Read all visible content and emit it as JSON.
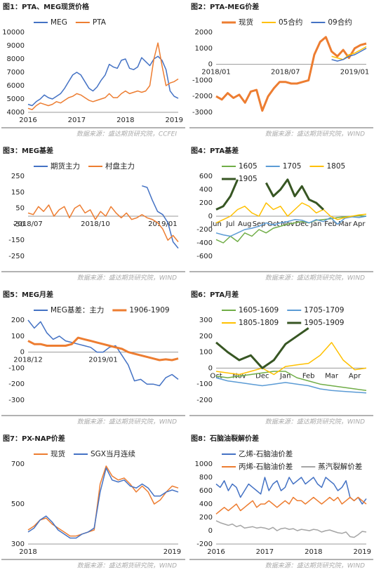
{
  "chart_data": [
    {
      "type": "line",
      "title": "图1：PTA、MEG现货价格",
      "source": "数据来源：盛达期货研究院，CCFEI",
      "categories": [
        "2016",
        null,
        null,
        null,
        null,
        null,
        null,
        null,
        null,
        null,
        null,
        null,
        "2017",
        null,
        null,
        null,
        null,
        null,
        null,
        null,
        null,
        null,
        null,
        null,
        "2018",
        null,
        null,
        null,
        null,
        null,
        null,
        null,
        null,
        null,
        null,
        null,
        "2019",
        null
      ],
      "series": [
        {
          "name": "MEG",
          "color": "#4472c4",
          "values": [
            4600,
            4500,
            4800,
            5000,
            5300,
            5100,
            5000,
            5200,
            5400,
            5800,
            6300,
            6800,
            7000,
            6800,
            6300,
            5800,
            5600,
            5900,
            6400,
            6800,
            7600,
            7400,
            7300,
            7900,
            8000,
            7300,
            7200,
            7400,
            8100,
            7800,
            7500,
            8000,
            8200,
            7900,
            7200,
            5600,
            5200,
            5050
          ]
        },
        {
          "name": "PTA",
          "color": "#ed7d31",
          "values": [
            4300,
            4200,
            4500,
            4700,
            4600,
            4500,
            4600,
            4800,
            4700,
            4900,
            5100,
            5200,
            5400,
            5300,
            5100,
            4900,
            4800,
            4900,
            5000,
            5100,
            5400,
            5100,
            5100,
            5400,
            5600,
            5400,
            5500,
            5600,
            5500,
            5600,
            6000,
            8000,
            9200,
            7500,
            6000,
            6200,
            6300,
            6500
          ]
        }
      ],
      "ylim": [
        4000,
        10000
      ],
      "yticks": [
        4000,
        5000,
        6000,
        7000,
        8000,
        9000,
        10000
      ],
      "x_labels_at_zero": false
    },
    {
      "type": "line",
      "title": "图2：PTA-MEG价差",
      "source": "数据来源：盛达期货研究院，WIND",
      "categories": [
        "2018/01",
        null,
        null,
        null,
        null,
        null,
        null,
        null,
        null,
        null,
        null,
        null,
        "2018/07",
        null,
        null,
        null,
        null,
        null,
        null,
        null,
        null,
        null,
        null,
        null,
        "2019/01",
        null,
        null
      ],
      "series": [
        {
          "name": "现货",
          "color": "#ed7d31",
          "width": 3,
          "values": [
            -2000,
            -2200,
            -1800,
            -2100,
            -1900,
            -2400,
            -1700,
            -1600,
            -2900,
            -2000,
            -1500,
            -1100,
            -1100,
            -1200,
            -1200,
            -1100,
            -1000,
            600,
            1400,
            1700,
            800,
            500,
            900,
            400,
            1000,
            1200,
            1300
          ]
        },
        {
          "name": "05合约",
          "color": "#ffc000",
          "values": [
            null,
            null,
            null,
            null,
            null,
            null,
            null,
            null,
            null,
            null,
            null,
            null,
            null,
            null,
            null,
            null,
            null,
            null,
            null,
            null,
            500,
            400,
            300,
            600,
            700,
            900,
            1100
          ]
        },
        {
          "name": "09合约",
          "color": "#4472c4",
          "values": [
            null,
            null,
            null,
            null,
            null,
            null,
            null,
            null,
            null,
            null,
            null,
            null,
            null,
            null,
            null,
            null,
            null,
            null,
            null,
            null,
            300,
            200,
            300,
            500,
            600,
            800,
            1000
          ]
        }
      ],
      "ylim": [
        -3000,
        2000
      ],
      "yticks": [
        -3000,
        -2000,
        -1000,
        0,
        1000,
        2000
      ],
      "x_labels_at_zero": true
    },
    {
      "type": "line",
      "title": "图3：MEG基差",
      "source": "数据来源：盛达期货研究院，WIND",
      "categories": [
        "2018/07",
        null,
        null,
        null,
        null,
        null,
        null,
        null,
        null,
        null,
        null,
        null,
        null,
        "2018/10",
        null,
        null,
        null,
        null,
        null,
        null,
        null,
        null,
        null,
        null,
        null,
        null,
        "2019/01",
        null,
        null,
        null
      ],
      "series": [
        {
          "name": "期货主力",
          "color": "#4472c4",
          "values": [
            null,
            null,
            null,
            null,
            null,
            null,
            null,
            null,
            null,
            null,
            null,
            null,
            null,
            null,
            null,
            null,
            null,
            null,
            null,
            null,
            null,
            null,
            190,
            180,
            100,
            30,
            10,
            -40,
            -160,
            -200
          ]
        },
        {
          "name": "村盘主力",
          "color": "#ed7d31",
          "values": [
            20,
            10,
            60,
            30,
            70,
            0,
            40,
            60,
            -10,
            50,
            70,
            20,
            40,
            -20,
            30,
            0,
            60,
            20,
            -10,
            20,
            -20,
            -10,
            10,
            -10,
            -20,
            -40,
            -80,
            -150,
            -120,
            -160
          ]
        }
      ],
      "ylim": [
        -250,
        250
      ],
      "yticks": [
        -250,
        -150,
        -50,
        50,
        150,
        250
      ],
      "x_labels_at_zero": true
    },
    {
      "type": "line",
      "title": "图4：PTA基差",
      "source": "数据来源：盛达期货研究院，WIND",
      "categories": [
        "Jun",
        null,
        "Jul",
        null,
        "Aug",
        null,
        "Sep",
        null,
        "Oct",
        null,
        "Nov",
        null,
        "Dec",
        null,
        "Jan",
        null,
        "Feb",
        null,
        "Mar",
        null,
        "Apr",
        null
      ],
      "series": [
        {
          "name": "1605",
          "color": "#70ad47",
          "values": [
            -350,
            -400,
            -300,
            -380,
            -250,
            -300,
            -200,
            -250,
            -180,
            -150,
            -120,
            -100,
            -80,
            -100,
            -60,
            -50,
            -40,
            -20,
            -10,
            0,
            10,
            0
          ]
        },
        {
          "name": "1705",
          "color": "#5b9bd5",
          "values": [
            -250,
            -280,
            -300,
            -250,
            -200,
            -180,
            -150,
            -100,
            -130,
            -100,
            -80,
            -50,
            -60,
            -100,
            -50,
            -80,
            -20,
            -120,
            -30,
            -10,
            -20,
            0
          ]
        },
        {
          "name": "1805",
          "color": "#ffc000",
          "values": [
            -100,
            -50,
            0,
            100,
            150,
            50,
            0,
            200,
            100,
            150,
            0,
            100,
            200,
            150,
            50,
            100,
            0,
            -50,
            -20,
            0,
            20,
            30
          ]
        },
        {
          "name": "1905",
          "color": "#375623",
          "width": 3,
          "values": [
            100,
            150,
            300,
            550,
            null,
            null,
            null,
            500,
            300,
            400,
            550,
            300,
            450,
            250,
            200,
            100,
            null,
            null,
            null,
            null,
            null,
            null
          ]
        }
      ],
      "ylim": [
        -600,
        600
      ],
      "yticks": [
        -600,
        -400,
        -200,
        0,
        200,
        400,
        600
      ],
      "x_labels_at_zero": true
    },
    {
      "type": "line",
      "title": "图5：MEG月差",
      "source": "数据来源：盛达期货研究院，WIND",
      "categories": [
        "2018/12",
        null,
        null,
        null,
        null,
        null,
        null,
        null,
        null,
        null,
        null,
        null,
        "2019/01",
        null,
        null,
        null,
        null,
        null,
        null,
        null,
        null,
        null,
        null,
        null,
        null
      ],
      "series": [
        {
          "name": "MEG基差：主力",
          "color": "#4472c4",
          "values": [
            200,
            150,
            190,
            120,
            80,
            100,
            70,
            60,
            50,
            40,
            30,
            0,
            0,
            30,
            40,
            -20,
            -80,
            -180,
            -170,
            -200,
            -200,
            -210,
            -160,
            -140,
            -170
          ]
        },
        {
          "name": "1906-1909",
          "color": "#ed7d31",
          "width": 3,
          "values": [
            70,
            50,
            50,
            40,
            40,
            40,
            40,
            50,
            90,
            80,
            70,
            60,
            50,
            40,
            30,
            20,
            0,
            -10,
            -20,
            -30,
            -40,
            -50,
            -45,
            -50,
            -40
          ]
        }
      ],
      "ylim": [
        -300,
        200
      ],
      "yticks": [
        -300,
        -200,
        -100,
        0,
        100,
        200
      ],
      "x_labels_at_zero": true
    },
    {
      "type": "line",
      "title": "图6：PTA月差",
      "source": "数据来源：盛达期货研究院，WIND",
      "categories": [
        "Oct",
        null,
        "Nov",
        null,
        "Dec",
        null,
        "Jan",
        null,
        "Feb",
        null,
        "Mar",
        null,
        "Apr",
        null
      ],
      "series": [
        {
          "name": "1605-1609",
          "color": "#70ad47",
          "values": [
            -50,
            -60,
            -50,
            -40,
            -30,
            -20,
            -20,
            -60,
            -80,
            -100,
            -110,
            -120,
            -130,
            -140
          ]
        },
        {
          "name": "1705-1709",
          "color": "#5b9bd5",
          "values": [
            -60,
            -80,
            -90,
            -100,
            -110,
            -100,
            -90,
            -100,
            -110,
            -130,
            -140,
            -145,
            -150,
            -155
          ]
        },
        {
          "name": "1805-1809",
          "color": "#ffc000",
          "values": [
            -20,
            -30,
            -40,
            -20,
            0,
            -40,
            10,
            20,
            30,
            80,
            160,
            50,
            -10,
            0
          ]
        },
        {
          "name": "1905-1909",
          "color": "#375623",
          "width": 3,
          "values": [
            160,
            100,
            50,
            80,
            0,
            50,
            150,
            200,
            250,
            null,
            null,
            null,
            null,
            null
          ]
        }
      ],
      "ylim": [
        -200,
        300
      ],
      "yticks": [
        -200,
        -100,
        0,
        100,
        200,
        300
      ],
      "x_labels_at_zero": true
    },
    {
      "type": "line",
      "title": "图7：PX-NAP价差",
      "source": "数据来源：盛达期货研究院，WIND",
      "categories": [
        "2018",
        null,
        null,
        null,
        null,
        null,
        null,
        null,
        null,
        null,
        null,
        null,
        null,
        null,
        null,
        null,
        null,
        null,
        null,
        null,
        null,
        null,
        null,
        null,
        "2019",
        null
      ],
      "series": [
        {
          "name": "现货",
          "color": "#ed7d31",
          "values": [
            370,
            390,
            420,
            430,
            400,
            380,
            360,
            340,
            340,
            350,
            360,
            370,
            600,
            690,
            640,
            620,
            630,
            600,
            560,
            590,
            560,
            500,
            520,
            560,
            590,
            580
          ]
        },
        {
          "name": "SGX当月连续",
          "color": "#4472c4",
          "values": [
            360,
            380,
            420,
            440,
            410,
            370,
            350,
            330,
            330,
            350,
            360,
            380,
            560,
            680,
            620,
            610,
            620,
            590,
            580,
            600,
            580,
            540,
            540,
            560,
            570,
            560
          ]
        }
      ],
      "ylim": [
        300,
        700
      ],
      "yticks": [
        300,
        500,
        700
      ],
      "x_labels_at_zero": false
    },
    {
      "type": "line",
      "title": "图8：石脑油裂解价差",
      "source": "数据来源：盛达期货研究院，WIND",
      "categories": [
        "2016",
        null,
        null,
        null,
        null,
        null,
        null,
        null,
        null,
        null,
        null,
        null,
        "2017",
        null,
        null,
        null,
        null,
        null,
        null,
        null,
        null,
        null,
        null,
        null,
        "2018",
        null,
        null,
        null,
        null,
        null,
        null,
        null,
        null,
        null,
        null,
        null,
        "2019",
        null
      ],
      "series": [
        {
          "name": "乙烯-石脑油价差",
          "color": "#4472c4",
          "values": [
            700,
            650,
            750,
            600,
            700,
            650,
            500,
            600,
            700,
            650,
            600,
            550,
            800,
            600,
            700,
            750,
            600,
            650,
            800,
            700,
            750,
            800,
            700,
            750,
            800,
            700,
            650,
            800,
            750,
            700,
            600,
            650,
            750,
            500,
            450,
            500,
            400,
            480
          ]
        },
        {
          "name": "丙烯-石脑油价差",
          "color": "#ed7d31",
          "values": [
            250,
            300,
            350,
            300,
            350,
            400,
            300,
            350,
            400,
            450,
            350,
            400,
            400,
            450,
            400,
            350,
            400,
            450,
            400,
            500,
            450,
            450,
            400,
            450,
            500,
            450,
            400,
            450,
            500,
            450,
            500,
            400,
            450,
            500,
            450,
            500,
            450,
            400
          ]
        },
        {
          "name": "蒸汽裂解价差",
          "color": "#a5a5a5",
          "values": [
            150,
            120,
            100,
            80,
            100,
            60,
            80,
            40,
            50,
            60,
            40,
            50,
            40,
            20,
            50,
            0,
            30,
            40,
            20,
            30,
            0,
            20,
            10,
            0,
            20,
            10,
            -20,
            0,
            10,
            -10,
            -30,
            -40,
            -20,
            -90,
            -100,
            -60,
            -10,
            -20
          ]
        }
      ],
      "ylim": [
        -200,
        1000
      ],
      "yticks": [
        -200,
        0,
        200,
        400,
        600,
        800,
        1000
      ],
      "x_labels_at_zero": false
    }
  ]
}
